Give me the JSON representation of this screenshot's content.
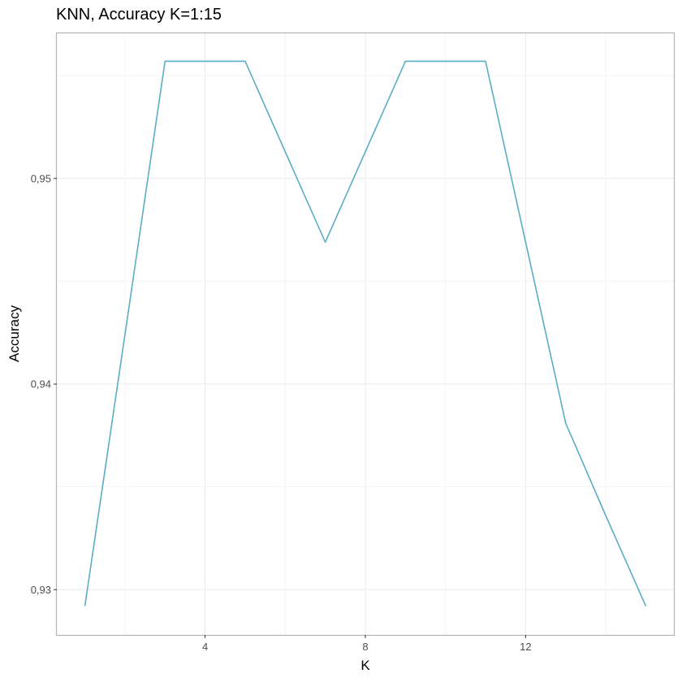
{
  "chart_data": {
    "type": "line",
    "title": "KNN, Accuracy K=1:15",
    "xlabel": "K",
    "ylabel": "Accuracy",
    "x": [
      1,
      2,
      3,
      4,
      5,
      6,
      7,
      8,
      9,
      10,
      11,
      12,
      13,
      14,
      15
    ],
    "series": [
      {
        "values": [
          0.9292,
          0.9424,
          0.9557,
          0.9557,
          0.9557,
          0.9513,
          0.9469,
          0.9513,
          0.9557,
          0.9557,
          0.9557,
          0.9469,
          0.9381,
          0.9336,
          0.9292
        ],
        "color": "#5aaec1"
      }
    ],
    "xticks": [
      4,
      8,
      12
    ],
    "xtick_labels": [
      "4",
      "8",
      "12"
    ],
    "yticks": [
      0.93,
      0.94,
      0.95
    ],
    "ytick_labels": [
      "0,93",
      "0,94",
      "0,95"
    ],
    "xlim": [
      0.3,
      15.7
    ],
    "ylim": [
      0.9278,
      0.9571
    ],
    "grid": true,
    "legend": "none"
  }
}
